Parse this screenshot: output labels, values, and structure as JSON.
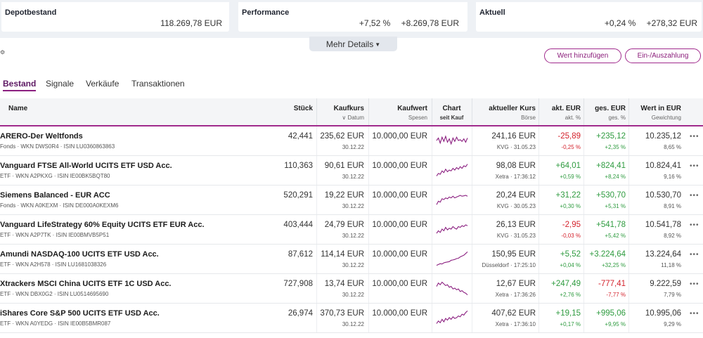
{
  "summary": {
    "depot": {
      "label": "Depotbestand",
      "value": "118.269,78 EUR"
    },
    "performance": {
      "label": "Performance",
      "percent": "+7,52 %",
      "amount": "+8.269,78 EUR"
    },
    "aktuell": {
      "label": "Aktuell",
      "percent": "+0,24 %",
      "amount": "+278,32 EUR"
    }
  },
  "details_toggle": "Mehr Details",
  "buttons": {
    "add_value": "Wert hinzufügen",
    "deposit": "Ein-/Auszahlung"
  },
  "tabs": [
    "Bestand",
    "Signale",
    "Verkäufe",
    "Transaktionen"
  ],
  "columns": {
    "name": "Name",
    "stueck": "Stück",
    "kaufkurs": "Kaufkurs",
    "kaufkurs_sub": "Datum",
    "kaufwert": "Kaufwert",
    "kaufwert_sub": "Spesen",
    "chart": "Chart",
    "chart_sub": "seit Kauf",
    "kurs": "aktueller Kurs",
    "kurs_sub": "Börse",
    "akt": "akt. EUR",
    "akt_sub": "akt. %",
    "ges": "ges. EUR",
    "ges_sub": "ges. %",
    "wert": "Wert in EUR",
    "wert_sub": "Gewichtung"
  },
  "rows": [
    {
      "name": "ARERO-Der Weltfonds",
      "sub": "Fonds · WKN DWS0R4 · ISIN LU0360863863",
      "stueck": "42,441",
      "kaufkurs": "235,62 EUR",
      "datum": "30.12.22",
      "kaufwert": "10.000,00 EUR",
      "kurs": "241,16 EUR",
      "boerse": "KVG · 31.05.23",
      "akt_eur": "-25,89",
      "akt_pct": "-0,25 %",
      "ges_eur": "+235,12",
      "ges_pct": "+2,35 %",
      "wert": "10.235,12",
      "gewicht": "8,65 %",
      "akt_color": "#d4232d",
      "ges_color": "#2e9b3f",
      "spark": [
        0.5,
        0.35,
        0.65,
        0.3,
        0.55,
        0.25,
        0.6,
        0.4,
        0.7,
        0.35,
        0.55,
        0.3,
        0.5,
        0.45,
        0.55,
        0.4,
        0.6,
        0.35
      ]
    },
    {
      "name": "Vanguard FTSE All-World UCITS ETF USD Acc.",
      "sub": "ETF · WKN A2PKXG · ISIN IE00BK5BQT80",
      "stueck": "110,363",
      "kaufkurs": "90,61 EUR",
      "datum": "30.12.22",
      "kaufwert": "10.000,00 EUR",
      "kurs": "98,08 EUR",
      "boerse": "Xetra · 17:36:12",
      "akt_eur": "+64,01",
      "akt_pct": "+0,59 %",
      "ges_eur": "+824,41",
      "ges_pct": "+8,24 %",
      "wert": "10.824,41",
      "gewicht": "9,16 %",
      "akt_color": "#2e9b3f",
      "ges_color": "#2e9b3f",
      "spark": [
        0.85,
        0.7,
        0.75,
        0.55,
        0.65,
        0.45,
        0.6,
        0.5,
        0.55,
        0.4,
        0.5,
        0.35,
        0.45,
        0.3,
        0.4,
        0.25,
        0.3,
        0.15
      ]
    },
    {
      "name": "Siemens Balanced - EUR ACC",
      "sub": "Fonds · WKN A0KEXM · ISIN DE000A0KEXM6",
      "stueck": "520,291",
      "kaufkurs": "19,22 EUR",
      "datum": "30.12.22",
      "kaufwert": "10.000,00 EUR",
      "kurs": "20,24 EUR",
      "boerse": "KVG · 30.05.23",
      "akt_eur": "+31,22",
      "akt_pct": "+0,30 %",
      "ges_eur": "+530,70",
      "ges_pct": "+5,31 %",
      "wert": "10.530,70",
      "gewicht": "8,91 %",
      "akt_color": "#2e9b3f",
      "ges_color": "#2e9b3f",
      "spark": [
        0.8,
        0.6,
        0.65,
        0.45,
        0.5,
        0.4,
        0.45,
        0.35,
        0.4,
        0.3,
        0.4,
        0.35,
        0.3,
        0.25,
        0.3,
        0.28,
        0.25,
        0.3
      ]
    },
    {
      "name": "Vanguard LifeStrategy 60% Equity UCITS ETF EUR Acc.",
      "sub": "ETF · WKN A2P7TK · ISIN IE00BMVB5P51",
      "stueck": "403,444",
      "kaufkurs": "24,79 EUR",
      "datum": "30.12.22",
      "kaufwert": "10.000,00 EUR",
      "kurs": "26,13 EUR",
      "boerse": "KVG · 31.05.23",
      "akt_eur": "-2,95",
      "akt_pct": "-0,03 %",
      "ges_eur": "+541,78",
      "ges_pct": "+5,42 %",
      "wert": "10.541,78",
      "gewicht": "8,92 %",
      "akt_color": "#d4232d",
      "ges_color": "#2e9b3f",
      "spark": [
        0.75,
        0.6,
        0.7,
        0.5,
        0.6,
        0.4,
        0.55,
        0.45,
        0.5,
        0.35,
        0.45,
        0.5,
        0.35,
        0.4,
        0.3,
        0.35,
        0.25,
        0.3
      ]
    },
    {
      "name": "Amundi NASDAQ-100 UCITS ETF USD Acc.",
      "sub": "ETF · WKN A2H578 · ISIN LU1681038326",
      "stueck": "87,612",
      "kaufkurs": "114,14 EUR",
      "datum": "30.12.22",
      "kaufwert": "10.000,00 EUR",
      "kurs": "150,95 EUR",
      "boerse": "Düsseldorf · 17:25:10",
      "akt_eur": "+5,52",
      "akt_pct": "+0,04 %",
      "ges_eur": "+3.224,64",
      "ges_pct": "+32,25 %",
      "wert": "13.224,64",
      "gewicht": "11,18 %",
      "akt_color": "#2e9b3f",
      "ges_color": "#2e9b3f",
      "spark": [
        0.9,
        0.85,
        0.8,
        0.82,
        0.75,
        0.72,
        0.7,
        0.68,
        0.6,
        0.58,
        0.55,
        0.5,
        0.48,
        0.4,
        0.35,
        0.3,
        0.2,
        0.1
      ]
    },
    {
      "name": "Xtrackers MSCI China UCITS ETF 1C USD Acc.",
      "sub": "ETF · WKN DBX0G2 · ISIN LU0514695690",
      "stueck": "727,908",
      "kaufkurs": "13,74 EUR",
      "datum": "30.12.22",
      "kaufwert": "10.000,00 EUR",
      "kurs": "12,67 EUR",
      "boerse": "Xetra · 17:36:26",
      "akt_eur": "+247,49",
      "akt_pct": "+2,76 %",
      "ges_eur": "-777,41",
      "ges_pct": "-7,77 %",
      "wert": "9.222,59",
      "gewicht": "7,79 %",
      "akt_color": "#2e9b3f",
      "ges_color": "#d4232d",
      "spark": [
        0.4,
        0.2,
        0.3,
        0.15,
        0.25,
        0.35,
        0.3,
        0.45,
        0.4,
        0.55,
        0.5,
        0.6,
        0.55,
        0.7,
        0.65,
        0.75,
        0.8,
        0.9
      ]
    },
    {
      "name": "iShares Core S&P 500 UCITS ETF USD Acc.",
      "sub": "ETF · WKN A0YEDG · ISIN IE00B5BMR087",
      "stueck": "26,974",
      "kaufkurs": "370,73 EUR",
      "datum": "30.12.22",
      "kaufwert": "10.000,00 EUR",
      "kurs": "407,62 EUR",
      "boerse": "Xetra · 17:36:10",
      "akt_eur": "+19,15",
      "akt_pct": "+0,17 %",
      "ges_eur": "+995,06",
      "ges_pct": "+9,95 %",
      "wert": "10.995,06",
      "gewicht": "9,29 %",
      "akt_color": "#2e9b3f",
      "ges_color": "#2e9b3f",
      "spark": [
        0.85,
        0.7,
        0.8,
        0.6,
        0.75,
        0.55,
        0.65,
        0.5,
        0.6,
        0.45,
        0.55,
        0.5,
        0.4,
        0.45,
        0.3,
        0.35,
        0.2,
        0.1
      ]
    }
  ],
  "colors": {
    "accent": "#8b1f80",
    "positive": "#2e9b3f",
    "negative": "#d4232d",
    "chart_line": "#8b1f80"
  }
}
